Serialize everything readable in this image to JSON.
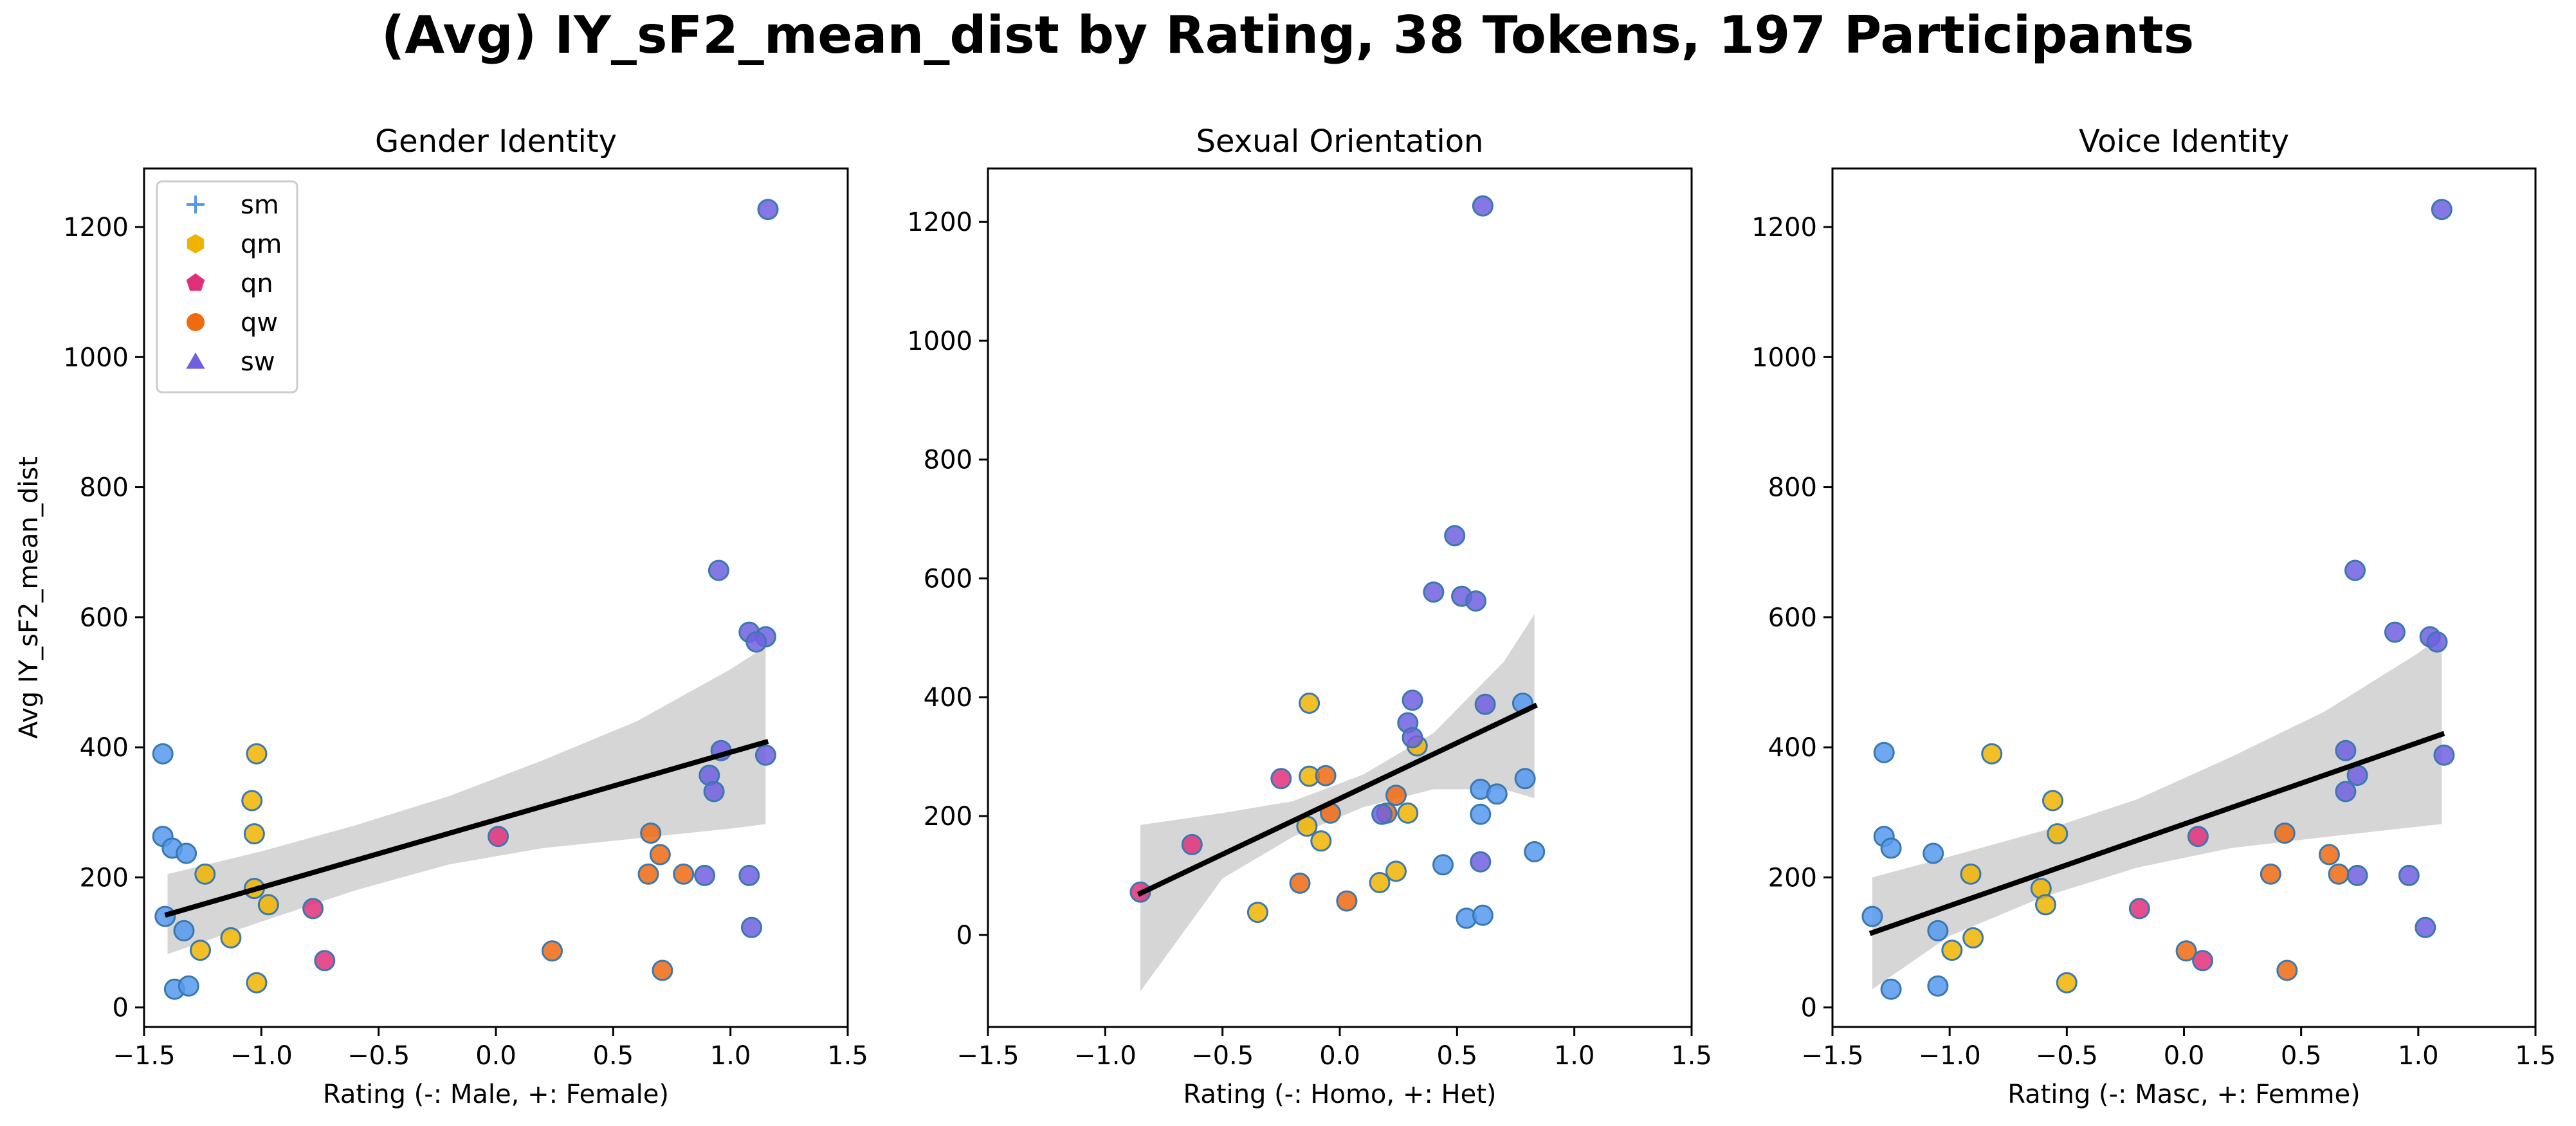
{
  "figure": {
    "title": "(Avg) IY_sF2_mean_dist by Rating, 38 Tokens, 197 Participants"
  },
  "colors": {
    "sm": "#5599ee",
    "qm": "#f0b400",
    "qn": "#e0307a",
    "qw": "#f06a10",
    "sw": "#7060e0",
    "point_edge": "#3a78b0",
    "fit_line": "#000000",
    "ci_band": "#d6d6d6"
  },
  "legend": {
    "placement": "upper-left of first panel",
    "items": [
      {
        "key": "sm",
        "label": "sm",
        "marker": "plus"
      },
      {
        "key": "qm",
        "label": "qm",
        "marker": "hexagon"
      },
      {
        "key": "qn",
        "label": "qn",
        "marker": "pentagon"
      },
      {
        "key": "qw",
        "label": "qw",
        "marker": "circle"
      },
      {
        "key": "sw",
        "label": "sw",
        "marker": "triangle"
      }
    ]
  },
  "chart_data": [
    {
      "type": "scatter",
      "title": "Gender Identity",
      "xlabel": "Rating (-: Male, +: Female)",
      "ylabel": "Avg IY_sF2_mean_dist",
      "xlim": [
        -1.5,
        1.5
      ],
      "ylim": [
        -30,
        1290
      ],
      "xticks": [
        -1.5,
        -1.0,
        -0.5,
        0.0,
        0.5,
        1.0,
        1.5
      ],
      "yticks": [
        0,
        200,
        400,
        600,
        800,
        1000,
        1200
      ],
      "grid": false,
      "fit": {
        "x": [
          -1.4,
          1.15
        ],
        "y": [
          143,
          408
        ]
      },
      "ci": {
        "x": [
          -1.4,
          -1.0,
          -0.6,
          -0.2,
          0.2,
          0.6,
          1.0,
          1.15
        ],
        "upper": [
          205,
          240,
          280,
          325,
          380,
          440,
          520,
          555
        ],
        "lower": [
          82,
          132,
          180,
          220,
          245,
          260,
          275,
          282
        ]
      },
      "points": [
        {
          "x": -1.42,
          "y": 390,
          "g": "sm"
        },
        {
          "x": -1.42,
          "y": 263,
          "g": "sm"
        },
        {
          "x": -1.38,
          "y": 245,
          "g": "sm"
        },
        {
          "x": -1.32,
          "y": 237,
          "g": "sm"
        },
        {
          "x": -1.41,
          "y": 140,
          "g": "sm"
        },
        {
          "x": -1.33,
          "y": 118,
          "g": "sm"
        },
        {
          "x": -1.37,
          "y": 28,
          "g": "sm"
        },
        {
          "x": -1.31,
          "y": 33,
          "g": "sm"
        },
        {
          "x": -1.02,
          "y": 390,
          "g": "qm"
        },
        {
          "x": -1.04,
          "y": 318,
          "g": "qm"
        },
        {
          "x": -1.03,
          "y": 267,
          "g": "qm"
        },
        {
          "x": -1.24,
          "y": 205,
          "g": "qm"
        },
        {
          "x": -1.03,
          "y": 183,
          "g": "qm"
        },
        {
          "x": -0.97,
          "y": 158,
          "g": "qm"
        },
        {
          "x": -1.13,
          "y": 107,
          "g": "qm"
        },
        {
          "x": -1.26,
          "y": 88,
          "g": "qm"
        },
        {
          "x": -1.02,
          "y": 38,
          "g": "qm"
        },
        {
          "x": 0.01,
          "y": 263,
          "g": "qn"
        },
        {
          "x": -0.78,
          "y": 152,
          "g": "qn"
        },
        {
          "x": -0.73,
          "y": 72,
          "g": "qn"
        },
        {
          "x": 0.66,
          "y": 268,
          "g": "qw"
        },
        {
          "x": 0.7,
          "y": 235,
          "g": "qw"
        },
        {
          "x": 0.65,
          "y": 205,
          "g": "qw"
        },
        {
          "x": 0.8,
          "y": 205,
          "g": "qw"
        },
        {
          "x": 0.24,
          "y": 87,
          "g": "qw"
        },
        {
          "x": 0.71,
          "y": 57,
          "g": "qw"
        },
        {
          "x": 1.16,
          "y": 1227,
          "g": "sw"
        },
        {
          "x": 0.95,
          "y": 672,
          "g": "sw"
        },
        {
          "x": 1.08,
          "y": 577,
          "g": "sw"
        },
        {
          "x": 1.15,
          "y": 570,
          "g": "sw"
        },
        {
          "x": 1.11,
          "y": 562,
          "g": "sw"
        },
        {
          "x": 0.96,
          "y": 395,
          "g": "sw"
        },
        {
          "x": 1.15,
          "y": 388,
          "g": "sw"
        },
        {
          "x": 0.91,
          "y": 357,
          "g": "sw"
        },
        {
          "x": 0.93,
          "y": 332,
          "g": "sw"
        },
        {
          "x": 0.89,
          "y": 203,
          "g": "sw"
        },
        {
          "x": 1.08,
          "y": 203,
          "g": "sw"
        },
        {
          "x": 1.09,
          "y": 123,
          "g": "sw"
        }
      ]
    },
    {
      "type": "scatter",
      "title": "Sexual Orientation",
      "xlabel": "Rating (-: Homo, +: Het)",
      "ylabel": "",
      "xlim": [
        -1.5,
        1.5
      ],
      "ylim": [
        -155,
        1290
      ],
      "xticks": [
        -1.5,
        -1.0,
        -0.5,
        0.0,
        0.5,
        1.0,
        1.5
      ],
      "yticks": [
        0,
        200,
        400,
        600,
        800,
        1000,
        1200
      ],
      "grid": false,
      "fit": {
        "x": [
          -0.85,
          0.83
        ],
        "y": [
          70,
          385
        ]
      },
      "ci": {
        "x": [
          -0.85,
          -0.5,
          -0.2,
          0.1,
          0.4,
          0.7,
          0.83
        ],
        "upper": [
          185,
          205,
          225,
          270,
          340,
          460,
          540
        ],
        "lower": [
          -95,
          95,
          165,
          215,
          245,
          245,
          230
        ]
      },
      "points": [
        {
          "x": -0.13,
          "y": 390,
          "g": "qm"
        },
        {
          "x": -0.13,
          "y": 267,
          "g": "qm"
        },
        {
          "x": -0.14,
          "y": 183,
          "g": "qm"
        },
        {
          "x": -0.08,
          "y": 158,
          "g": "qm"
        },
        {
          "x": 0.29,
          "y": 205,
          "g": "qm"
        },
        {
          "x": 0.24,
          "y": 107,
          "g": "qm"
        },
        {
          "x": 0.17,
          "y": 88,
          "g": "qm"
        },
        {
          "x": -0.35,
          "y": 38,
          "g": "qm"
        },
        {
          "x": 0.33,
          "y": 318,
          "g": "qm"
        },
        {
          "x": -0.25,
          "y": 263,
          "g": "qn"
        },
        {
          "x": -0.63,
          "y": 152,
          "g": "qn"
        },
        {
          "x": -0.85,
          "y": 72,
          "g": "qn"
        },
        {
          "x": -0.06,
          "y": 268,
          "g": "qw"
        },
        {
          "x": 0.24,
          "y": 235,
          "g": "qw"
        },
        {
          "x": 0.2,
          "y": 205,
          "g": "qw"
        },
        {
          "x": -0.04,
          "y": 205,
          "g": "qw"
        },
        {
          "x": -0.17,
          "y": 87,
          "g": "qw"
        },
        {
          "x": 0.03,
          "y": 57,
          "g": "qw"
        },
        {
          "x": 0.61,
          "y": 1227,
          "g": "sw"
        },
        {
          "x": 0.49,
          "y": 672,
          "g": "sw"
        },
        {
          "x": 0.4,
          "y": 577,
          "g": "sw"
        },
        {
          "x": 0.52,
          "y": 570,
          "g": "sw"
        },
        {
          "x": 0.58,
          "y": 562,
          "g": "sw"
        },
        {
          "x": 0.31,
          "y": 395,
          "g": "sw"
        },
        {
          "x": 0.62,
          "y": 388,
          "g": "sw"
        },
        {
          "x": 0.29,
          "y": 357,
          "g": "sw"
        },
        {
          "x": 0.31,
          "y": 332,
          "g": "sw"
        },
        {
          "x": 0.18,
          "y": 203,
          "g": "sw"
        },
        {
          "x": 0.6,
          "y": 123,
          "g": "sw"
        },
        {
          "x": 0.78,
          "y": 390,
          "g": "sm"
        },
        {
          "x": 0.79,
          "y": 263,
          "g": "sm"
        },
        {
          "x": 0.6,
          "y": 245,
          "g": "sm"
        },
        {
          "x": 0.67,
          "y": 237,
          "g": "sm"
        },
        {
          "x": 0.6,
          "y": 203,
          "g": "sm"
        },
        {
          "x": 0.83,
          "y": 140,
          "g": "sm"
        },
        {
          "x": 0.44,
          "y": 118,
          "g": "sm"
        },
        {
          "x": 0.54,
          "y": 28,
          "g": "sm"
        },
        {
          "x": 0.61,
          "y": 33,
          "g": "sm"
        }
      ]
    },
    {
      "type": "scatter",
      "title": "Voice Identity",
      "xlabel": "Rating (-: Masc, +: Femme)",
      "ylabel": "",
      "xlim": [
        -1.5,
        1.5
      ],
      "ylim": [
        -30,
        1290
      ],
      "xticks": [
        -1.5,
        -1.0,
        -0.5,
        0.0,
        0.5,
        1.0,
        1.5
      ],
      "yticks": [
        0,
        200,
        400,
        600,
        800,
        1000,
        1200
      ],
      "grid": false,
      "fit": {
        "x": [
          -1.33,
          1.1
        ],
        "y": [
          115,
          420
        ]
      },
      "ci": {
        "x": [
          -1.33,
          -1.0,
          -0.6,
          -0.2,
          0.2,
          0.6,
          1.0,
          1.1
        ],
        "upper": [
          200,
          232,
          272,
          320,
          385,
          455,
          545,
          572
        ],
        "lower": [
          28,
          110,
          170,
          215,
          245,
          262,
          278,
          282
        ]
      },
      "points": [
        {
          "x": -1.28,
          "y": 392,
          "g": "sm"
        },
        {
          "x": -1.28,
          "y": 263,
          "g": "sm"
        },
        {
          "x": -1.25,
          "y": 245,
          "g": "sm"
        },
        {
          "x": -1.07,
          "y": 237,
          "g": "sm"
        },
        {
          "x": -1.33,
          "y": 140,
          "g": "sm"
        },
        {
          "x": -1.05,
          "y": 118,
          "g": "sm"
        },
        {
          "x": -1.25,
          "y": 28,
          "g": "sm"
        },
        {
          "x": -1.05,
          "y": 33,
          "g": "sm"
        },
        {
          "x": -0.82,
          "y": 390,
          "g": "qm"
        },
        {
          "x": -0.56,
          "y": 318,
          "g": "qm"
        },
        {
          "x": -0.54,
          "y": 267,
          "g": "qm"
        },
        {
          "x": -0.91,
          "y": 205,
          "g": "qm"
        },
        {
          "x": -0.61,
          "y": 183,
          "g": "qm"
        },
        {
          "x": -0.59,
          "y": 158,
          "g": "qm"
        },
        {
          "x": -0.9,
          "y": 107,
          "g": "qm"
        },
        {
          "x": -0.99,
          "y": 88,
          "g": "qm"
        },
        {
          "x": -0.5,
          "y": 38,
          "g": "qm"
        },
        {
          "x": 0.06,
          "y": 263,
          "g": "qn"
        },
        {
          "x": -0.19,
          "y": 152,
          "g": "qn"
        },
        {
          "x": 0.08,
          "y": 72,
          "g": "qn"
        },
        {
          "x": 0.43,
          "y": 268,
          "g": "qw"
        },
        {
          "x": 0.62,
          "y": 235,
          "g": "qw"
        },
        {
          "x": 0.37,
          "y": 205,
          "g": "qw"
        },
        {
          "x": 0.66,
          "y": 205,
          "g": "qw"
        },
        {
          "x": 0.01,
          "y": 87,
          "g": "qw"
        },
        {
          "x": 0.44,
          "y": 57,
          "g": "qw"
        },
        {
          "x": 1.1,
          "y": 1227,
          "g": "sw"
        },
        {
          "x": 0.73,
          "y": 672,
          "g": "sw"
        },
        {
          "x": 0.9,
          "y": 577,
          "g": "sw"
        },
        {
          "x": 1.05,
          "y": 570,
          "g": "sw"
        },
        {
          "x": 1.08,
          "y": 562,
          "g": "sw"
        },
        {
          "x": 0.69,
          "y": 395,
          "g": "sw"
        },
        {
          "x": 1.11,
          "y": 388,
          "g": "sw"
        },
        {
          "x": 0.74,
          "y": 357,
          "g": "sw"
        },
        {
          "x": 0.69,
          "y": 332,
          "g": "sw"
        },
        {
          "x": 0.74,
          "y": 203,
          "g": "sw"
        },
        {
          "x": 0.96,
          "y": 203,
          "g": "sw"
        },
        {
          "x": 1.03,
          "y": 123,
          "g": "sw"
        }
      ]
    }
  ]
}
